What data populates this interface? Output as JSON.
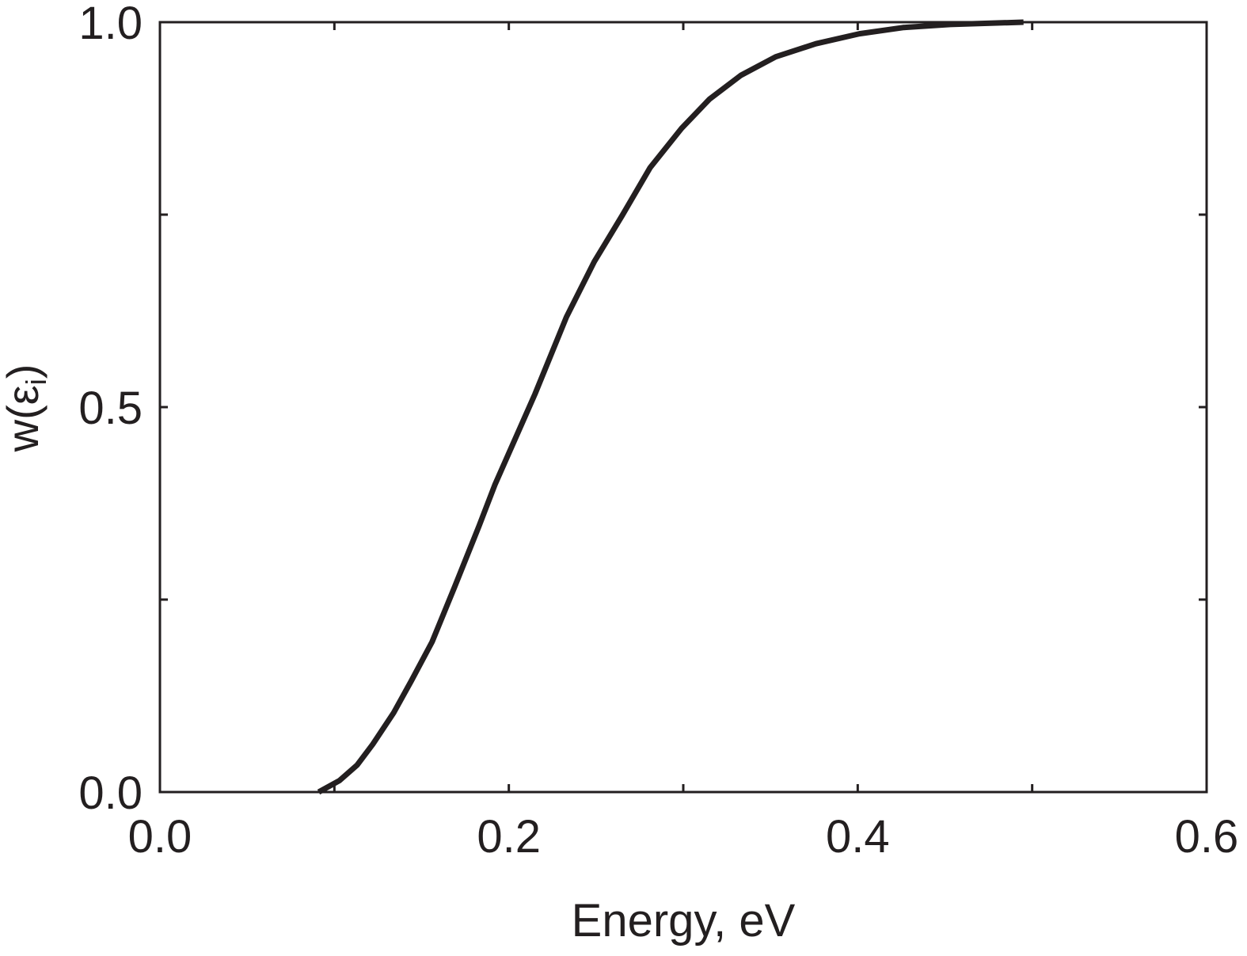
{
  "chart_data": {
    "type": "line",
    "title": "",
    "xlabel": "Energy, eV",
    "ylabel": "w(ε",
    "ylabel_subscript": "i",
    "ylabel_close": ")",
    "xlim": [
      0.0,
      0.6
    ],
    "ylim": [
      0.0,
      1.0
    ],
    "x_ticks": [
      0.0,
      0.1,
      0.2,
      0.3,
      0.4,
      0.5,
      0.6
    ],
    "x_tick_labels": [
      "0.0",
      "0.2",
      "0.4",
      "0.6"
    ],
    "x_tick_label_values": [
      0.0,
      0.2,
      0.4,
      0.6
    ],
    "y_ticks": [
      0.0,
      0.25,
      0.5,
      0.75,
      1.0
    ],
    "y_tick_labels": [
      "0.0",
      "0.5",
      "1.0"
    ],
    "y_tick_label_values": [
      0.0,
      0.5,
      1.0
    ],
    "grid": false,
    "line_color": "#231f20",
    "series": [
      {
        "x": [
          0.091,
          0.103,
          0.113,
          0.122,
          0.134,
          0.144,
          0.156,
          0.169,
          0.183,
          0.192,
          0.215,
          0.233,
          0.249,
          0.265,
          0.281,
          0.299,
          0.315,
          0.333,
          0.353,
          0.376,
          0.401,
          0.426,
          0.453,
          0.495
        ],
        "y": [
          0.0,
          0.015,
          0.035,
          0.062,
          0.103,
          0.144,
          0.195,
          0.267,
          0.346,
          0.399,
          0.517,
          0.617,
          0.689,
          0.749,
          0.811,
          0.862,
          0.9,
          0.931,
          0.955,
          0.972,
          0.985,
          0.993,
          0.997,
          1.0
        ]
      }
    ]
  }
}
